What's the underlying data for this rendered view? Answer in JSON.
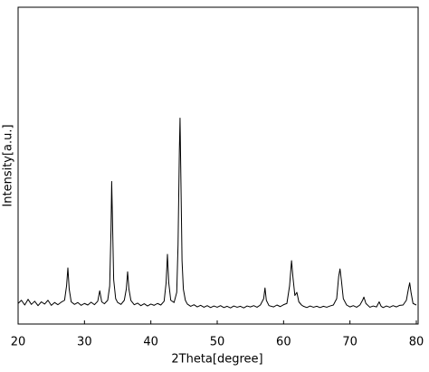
{
  "chart_data": {
    "type": "line",
    "xlabel": "2Theta[degree]",
    "ylabel": "Intensity[a.u.]",
    "x": [
      20,
      20.5,
      21,
      21.5,
      22,
      22.5,
      23,
      23.5,
      24,
      24.5,
      25,
      25.5,
      26,
      26.5,
      27,
      27.3,
      27.5,
      27.7,
      28,
      28.5,
      29,
      29.5,
      30,
      30.5,
      31,
      31.5,
      32,
      32.3,
      32.6,
      33,
      33.5,
      33.8,
      34,
      34.1,
      34.2,
      34.4,
      34.7,
      35,
      35.5,
      36,
      36.3,
      36.5,
      36.7,
      37,
      37.5,
      38,
      38.5,
      39,
      39.5,
      40,
      40.5,
      41,
      41.5,
      42,
      42.3,
      42.5,
      42.7,
      43,
      43.5,
      43.9,
      44.1,
      44.3,
      44.4,
      44.5,
      44.7,
      44.9,
      45.2,
      45.5,
      46,
      46.5,
      47,
      47.5,
      48,
      48.5,
      49,
      49.5,
      50,
      50.5,
      51,
      51.5,
      52,
      52.5,
      53,
      53.5,
      54,
      54.5,
      55,
      55.5,
      56,
      56.5,
      57,
      57.2,
      57.4,
      57.8,
      58.5,
      59,
      59.5,
      60,
      60.5,
      60.9,
      61.2,
      61.4,
      61.7,
      62,
      62.3,
      62.7,
      63,
      63.5,
      64,
      64.5,
      65,
      65.5,
      66,
      66.5,
      67,
      67.5,
      68,
      68.3,
      68.5,
      68.7,
      69,
      69.5,
      70,
      70.5,
      71,
      71.5,
      71.9,
      72.1,
      72.4,
      73,
      73.5,
      74,
      74.4,
      74.7,
      75,
      75.5,
      76,
      76.5,
      77,
      77.5,
      78,
      78.5,
      78.8,
      79,
      79.2,
      79.5,
      80
    ],
    "values": [
      6.5,
      7.5,
      6,
      7.8,
      6.2,
      7.2,
      5.8,
      7,
      6.3,
      7.5,
      5.9,
      6.8,
      6.1,
      6.9,
      7.5,
      12,
      17.7,
      11,
      7,
      6.2,
      6.8,
      5.9,
      6.5,
      6,
      6.9,
      6.1,
      7.2,
      10.5,
      7,
      6.4,
      7.5,
      12,
      30,
      45,
      35,
      14,
      8,
      6.8,
      6.2,
      7.5,
      11,
      16.5,
      11,
      7.4,
      6.1,
      6.6,
      5.8,
      6.4,
      5.7,
      6.3,
      5.9,
      6.5,
      6,
      7.2,
      13,
      22,
      13,
      7.5,
      6.8,
      10,
      25,
      55,
      65,
      50,
      20,
      11,
      7.5,
      6.3,
      5.6,
      6.1,
      5.4,
      5.9,
      5.3,
      5.8,
      5.2,
      5.7,
      5.3,
      5.8,
      5.2,
      5.6,
      5.1,
      5.7,
      5.3,
      5.6,
      5.1,
      5.7,
      5.4,
      5.8,
      5.3,
      6,
      8,
      11.4,
      7.5,
      5.8,
      5.4,
      6,
      5.5,
      6.1,
      6.5,
      12,
      20,
      15,
      9,
      10,
      7,
      6,
      5.6,
      5.2,
      5.7,
      5.3,
      5.6,
      5.2,
      5.6,
      5.3,
      5.7,
      6,
      8,
      15,
      17.4,
      14,
      8,
      6,
      5.4,
      5.8,
      5.3,
      6,
      7.5,
      8.5,
      6.5,
      5.3,
      5.7,
      5.4,
      7,
      5.6,
      5.2,
      5.7,
      5.3,
      5.8,
      5.4,
      5.9,
      6,
      7.5,
      11,
      13,
      10,
      6.5,
      6
    ],
    "color": "#000000",
    "xlim": [
      20,
      80
    ],
    "xticks": [
      20,
      30,
      40,
      50,
      60,
      70,
      80
    ],
    "ylim": [
      0,
      100
    ]
  }
}
